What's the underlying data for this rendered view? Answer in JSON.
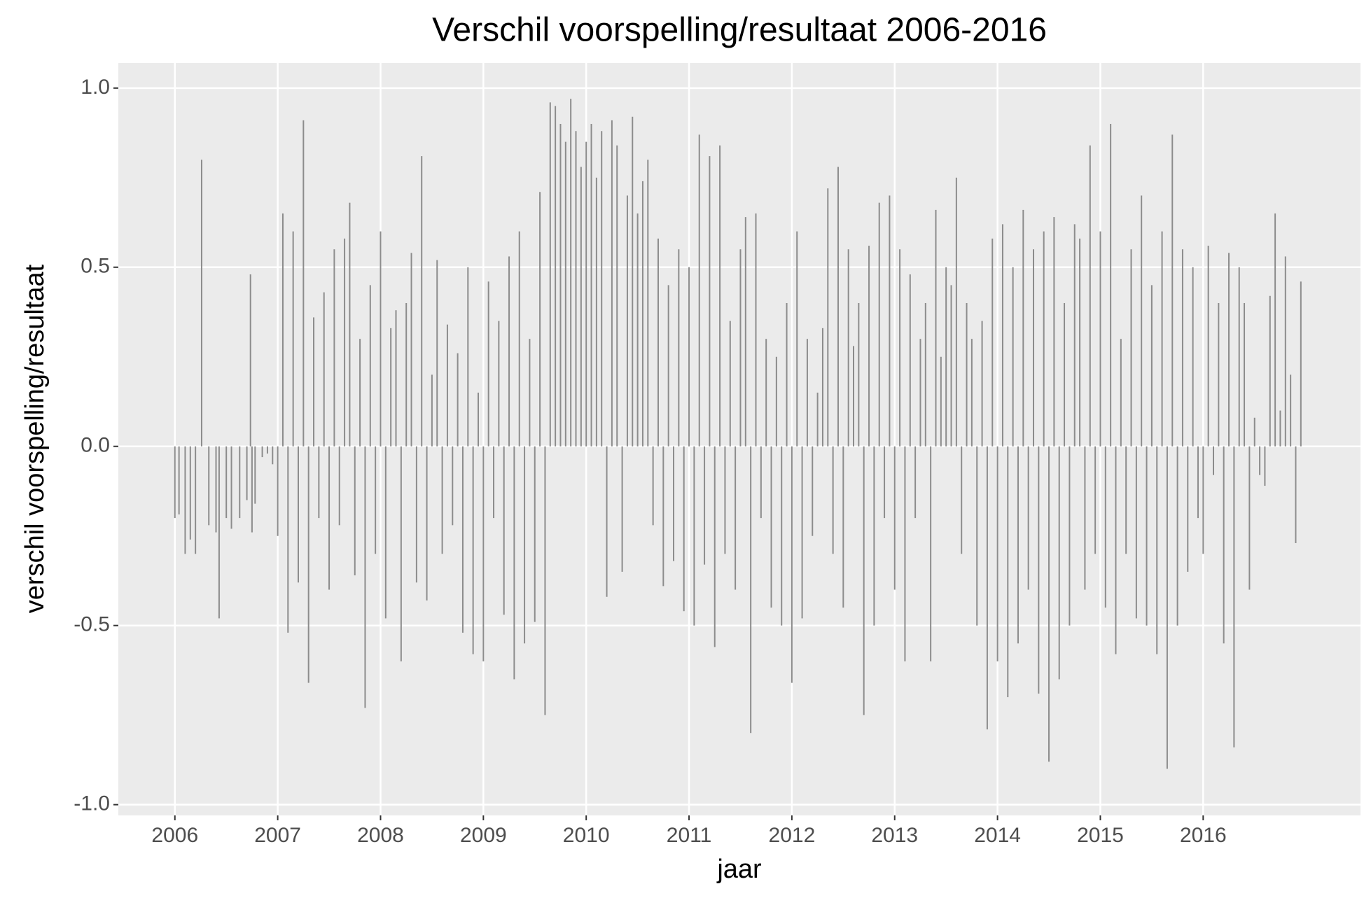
{
  "chart_data": {
    "type": "bar",
    "title": "Verschil voorspelling/resultaat 2006-2016",
    "x_label": "jaar",
    "y_label": "verschil voorspelling/resultaat",
    "color": "#8c8c8c",
    "grid": true,
    "xlim": [
      2005.45,
      2017.53
    ],
    "xticks": [
      2006,
      2007,
      2008,
      2009,
      2010,
      2011,
      2012,
      2013,
      2014,
      2015,
      2016
    ],
    "ylim": [
      -1.03,
      1.07
    ],
    "yticks": [
      {
        "value": -1,
        "label": "-1.0"
      },
      {
        "value": -0.5,
        "label": "-0.5"
      },
      {
        "value": 0,
        "label": "0.0"
      },
      {
        "value": 0.5,
        "label": "0.5"
      },
      {
        "value": 1,
        "label": "1.0"
      }
    ],
    "x": [
      2006.0,
      2006.04,
      2006.1,
      2006.15,
      2006.2,
      2006.26,
      2006.33,
      2006.4,
      2006.43,
      2006.5,
      2006.55,
      2006.63,
      2006.7,
      2006.735,
      2006.75,
      2006.78,
      2006.85,
      2006.9,
      2006.95,
      2007.0,
      2007.05,
      2007.1,
      2007.15,
      2007.2,
      2007.25,
      2007.3,
      2007.35,
      2007.4,
      2007.45,
      2007.5,
      2007.55,
      2007.6,
      2007.65,
      2007.7,
      2007.75,
      2007.8,
      2007.85,
      2007.9,
      2007.95,
      2008.0,
      2008.05,
      2008.1,
      2008.15,
      2008.2,
      2008.25,
      2008.3,
      2008.35,
      2008.4,
      2008.45,
      2008.5,
      2008.55,
      2008.6,
      2008.65,
      2008.7,
      2008.75,
      2008.8,
      2008.85,
      2008.9,
      2008.95,
      2009.0,
      2009.05,
      2009.1,
      2009.15,
      2009.2,
      2009.25,
      2009.3,
      2009.35,
      2009.4,
      2009.45,
      2009.5,
      2009.55,
      2009.6,
      2009.65,
      2009.7,
      2009.75,
      2009.8,
      2009.85,
      2009.9,
      2009.95,
      2010.0,
      2010.05,
      2010.1,
      2010.15,
      2010.2,
      2010.25,
      2010.3,
      2010.35,
      2010.4,
      2010.45,
      2010.5,
      2010.55,
      2010.6,
      2010.65,
      2010.7,
      2010.75,
      2010.8,
      2010.85,
      2010.9,
      2010.95,
      2011.0,
      2011.05,
      2011.1,
      2011.15,
      2011.2,
      2011.25,
      2011.3,
      2011.35,
      2011.4,
      2011.45,
      2011.5,
      2011.55,
      2011.6,
      2011.65,
      2011.7,
      2011.75,
      2011.8,
      2011.85,
      2011.9,
      2011.95,
      2012.0,
      2012.05,
      2012.1,
      2012.15,
      2012.2,
      2012.25,
      2012.3,
      2012.35,
      2012.4,
      2012.45,
      2012.5,
      2012.55,
      2012.6,
      2012.65,
      2012.7,
      2012.75,
      2012.8,
      2012.85,
      2012.9,
      2012.95,
      2013.0,
      2013.05,
      2013.1,
      2013.15,
      2013.2,
      2013.25,
      2013.3,
      2013.35,
      2013.4,
      2013.45,
      2013.5,
      2013.55,
      2013.6,
      2013.65,
      2013.7,
      2013.75,
      2013.8,
      2013.85,
      2013.9,
      2013.95,
      2014.0,
      2014.05,
      2014.1,
      2014.15,
      2014.2,
      2014.25,
      2014.3,
      2014.35,
      2014.4,
      2014.45,
      2014.5,
      2014.55,
      2014.6,
      2014.65,
      2014.7,
      2014.75,
      2014.8,
      2014.85,
      2014.9,
      2014.95,
      2015.0,
      2015.05,
      2015.1,
      2015.15,
      2015.2,
      2015.25,
      2015.3,
      2015.35,
      2015.4,
      2015.45,
      2015.5,
      2015.55,
      2015.6,
      2015.65,
      2015.7,
      2015.75,
      2015.8,
      2015.85,
      2015.9,
      2015.95,
      2016.0,
      2016.05,
      2016.1,
      2016.15,
      2016.2,
      2016.25,
      2016.3,
      2016.35,
      2016.4,
      2016.45,
      2016.5,
      2016.55,
      2016.6,
      2016.65,
      2016.7,
      2016.75,
      2016.8,
      2016.85,
      2016.9,
      2016.95
    ],
    "values": [
      -0.2,
      -0.19,
      -0.3,
      -0.26,
      -0.3,
      0.8,
      -0.22,
      -0.24,
      -0.48,
      -0.2,
      -0.23,
      -0.2,
      -0.15,
      0.48,
      -0.24,
      -0.16,
      -0.03,
      -0.02,
      -0.05,
      -0.25,
      0.65,
      -0.52,
      0.6,
      -0.38,
      0.91,
      -0.66,
      0.36,
      -0.2,
      0.43,
      -0.4,
      0.55,
      -0.22,
      0.58,
      0.68,
      -0.36,
      0.3,
      -0.73,
      0.45,
      -0.3,
      0.6,
      -0.48,
      0.33,
      0.38,
      -0.6,
      0.4,
      0.54,
      -0.38,
      0.81,
      -0.43,
      0.2,
      0.52,
      -0.3,
      0.34,
      -0.22,
      0.26,
      -0.52,
      0.5,
      -0.58,
      0.15,
      -0.6,
      0.46,
      -0.2,
      0.35,
      -0.47,
      0.53,
      -0.65,
      0.6,
      -0.55,
      0.3,
      -0.49,
      0.71,
      -0.75,
      0.96,
      0.95,
      0.9,
      0.85,
      0.97,
      0.88,
      0.78,
      0.85,
      0.9,
      0.75,
      0.88,
      -0.42,
      0.91,
      0.84,
      -0.35,
      0.7,
      0.92,
      0.65,
      0.74,
      0.8,
      -0.22,
      0.58,
      -0.39,
      0.45,
      -0.32,
      0.55,
      -0.46,
      0.5,
      -0.5,
      0.87,
      -0.33,
      0.81,
      -0.56,
      0.84,
      -0.3,
      0.35,
      -0.4,
      0.55,
      0.64,
      -0.8,
      0.65,
      -0.2,
      0.3,
      -0.45,
      0.25,
      -0.5,
      0.4,
      -0.66,
      0.6,
      -0.48,
      0.3,
      -0.25,
      0.15,
      0.33,
      0.72,
      -0.3,
      0.78,
      -0.45,
      0.55,
      0.28,
      0.4,
      -0.75,
      0.56,
      -0.5,
      0.68,
      -0.2,
      0.7,
      -0.4,
      0.55,
      -0.6,
      0.48,
      -0.2,
      0.3,
      0.4,
      -0.6,
      0.66,
      0.25,
      0.5,
      0.45,
      0.75,
      -0.3,
      0.4,
      0.3,
      -0.5,
      0.35,
      -0.79,
      0.58,
      -0.6,
      0.62,
      -0.7,
      0.5,
      -0.55,
      0.66,
      -0.4,
      0.55,
      -0.69,
      0.6,
      -0.88,
      0.64,
      -0.65,
      0.4,
      -0.5,
      0.62,
      0.58,
      -0.4,
      0.84,
      -0.3,
      0.6,
      -0.45,
      0.9,
      -0.58,
      0.3,
      -0.3,
      0.55,
      -0.48,
      0.7,
      -0.5,
      0.45,
      -0.58,
      0.6,
      -0.9,
      0.87,
      -0.5,
      0.55,
      -0.35,
      0.5,
      -0.2,
      -0.3,
      0.56,
      -0.08,
      0.4,
      -0.55,
      0.54,
      -0.84,
      0.5,
      0.4,
      -0.4,
      0.08,
      -0.08,
      -0.11,
      0.42,
      0.65,
      0.1,
      0.53,
      0.2,
      -0.27,
      0.46
    ]
  }
}
